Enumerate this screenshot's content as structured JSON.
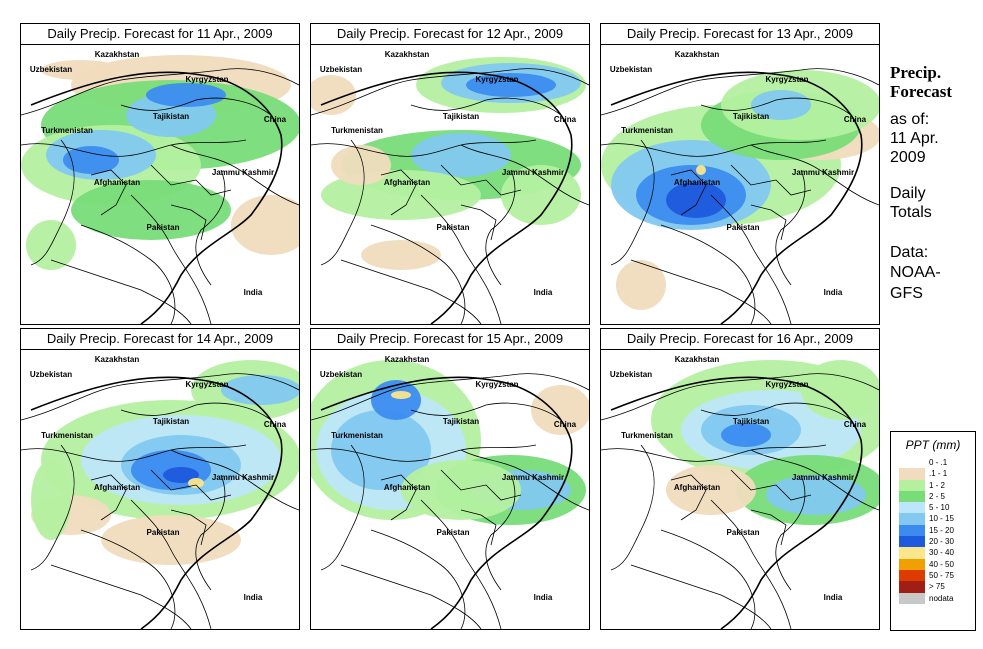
{
  "panels": [
    {
      "title": "Daily Precip. Forecast for  11 Apr., 2009"
    },
    {
      "title": "Daily Precip. Forecast for  12 Apr., 2009"
    },
    {
      "title": "Daily Precip. Forecast for  13 Apr., 2009"
    },
    {
      "title": "Daily Precip. Forecast for  14 Apr., 2009"
    },
    {
      "title": "Daily Precip. Forecast for  15 Apr., 2009"
    },
    {
      "title": "Daily Precip. Forecast for  16 Apr., 2009"
    }
  ],
  "map_labels": {
    "kazakhstan": "Kazakhstan",
    "uzbekistan": "Uzbekistan",
    "kyrgyzstan": "Kyrgyzstan",
    "tajikistan": "Tajikistan",
    "china": "China",
    "turkmenistan": "Turkmenistan",
    "jammu_kashmir": "Jammu Kashmir",
    "afghanistan": "Afghanistan",
    "pakistan": "Pakistan",
    "india": "India"
  },
  "sidebar": {
    "title_line1": "Precip.",
    "title_line2": "Forecast",
    "asof_line1": "as of:",
    "asof_line2": "11 Apr.",
    "asof_line3": "2009",
    "totals_line1": "Daily",
    "totals_line2": "Totals",
    "data_line1": "Data:",
    "data_line2": "NOAA-",
    "data_line3": "GFS"
  },
  "legend": {
    "title": "PPT (mm)",
    "items": [
      {
        "label": "0 - .1",
        "color": "#ffffff"
      },
      {
        "label": ".1 - 1",
        "color": "#f0dcbe"
      },
      {
        "label": "1 - 2",
        "color": "#b4f0a0"
      },
      {
        "label": "2 - 5",
        "color": "#78dc78"
      },
      {
        "label": "5 - 10",
        "color": "#bee6fa"
      },
      {
        "label": "10 - 15",
        "color": "#82c8f0"
      },
      {
        "label": "15 - 20",
        "color": "#3c8cf0"
      },
      {
        "label": "20 - 30",
        "color": "#1e5adc"
      },
      {
        "label": "30 - 40",
        "color": "#fae68c"
      },
      {
        "label": "40 - 50",
        "color": "#f0a000"
      },
      {
        "label": "50 - 75",
        "color": "#dc3c00"
      },
      {
        "label": "> 75",
        "color": "#a01e14"
      },
      {
        "label": "nodata",
        "color": "#c8c8c8"
      }
    ]
  }
}
